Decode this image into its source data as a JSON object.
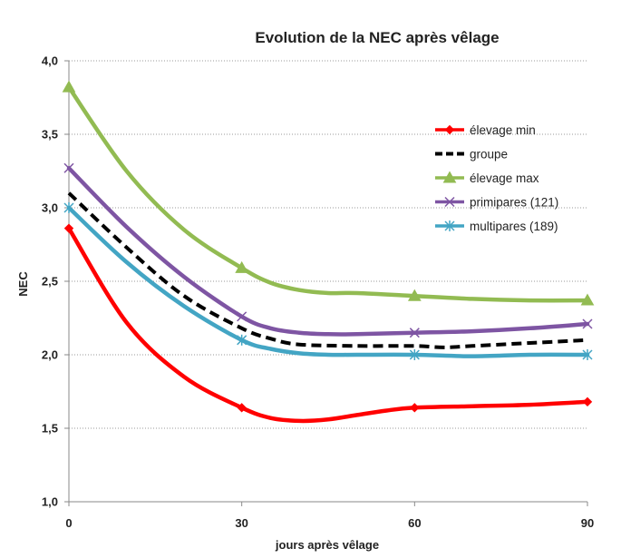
{
  "chart_data": {
    "type": "line",
    "title": "Evolution de la NEC après vêlage",
    "xlabel": "jours après vêlage",
    "ylabel": "NEC",
    "x_ticks": [
      "0",
      "30",
      "60",
      "90"
    ],
    "y_ticks": [
      "1,0",
      "1,5",
      "2,0",
      "2,5",
      "3,0",
      "3,5",
      "4,0"
    ],
    "xlim": [
      0,
      90
    ],
    "ylim": [
      1.0,
      4.0
    ],
    "grid": "horizontal dotted",
    "legend_position": "right",
    "series": [
      {
        "name": "élevage min",
        "color": "#ff0000",
        "marker": "diamond",
        "dashed": false,
        "x": [
          0,
          30,
          60,
          90
        ],
        "y": [
          2.86,
          1.64,
          1.64,
          1.68
        ],
        "curve": [
          [
            0,
            2.86
          ],
          [
            10,
            2.22
          ],
          [
            20,
            1.85
          ],
          [
            30,
            1.64
          ],
          [
            35,
            1.57
          ],
          [
            40,
            1.55
          ],
          [
            45,
            1.56
          ],
          [
            50,
            1.59
          ],
          [
            55,
            1.62
          ],
          [
            60,
            1.64
          ],
          [
            70,
            1.65
          ],
          [
            80,
            1.66
          ],
          [
            90,
            1.68
          ]
        ]
      },
      {
        "name": "groupe",
        "color": "#000000",
        "marker": "none",
        "dashed": true,
        "x": [
          0,
          30,
          60,
          90
        ],
        "y": [
          3.1,
          2.18,
          2.06,
          2.1
        ],
        "curve": [
          [
            0,
            3.1
          ],
          [
            10,
            2.73
          ],
          [
            20,
            2.4
          ],
          [
            30,
            2.18
          ],
          [
            35,
            2.11
          ],
          [
            40,
            2.07
          ],
          [
            50,
            2.06
          ],
          [
            60,
            2.06
          ],
          [
            65,
            2.05
          ],
          [
            70,
            2.06
          ],
          [
            80,
            2.08
          ],
          [
            90,
            2.1
          ]
        ]
      },
      {
        "name": "élevage max",
        "color": "#92bb52",
        "marker": "triangle",
        "dashed": false,
        "x": [
          0,
          30,
          60,
          90
        ],
        "y": [
          3.82,
          2.59,
          2.4,
          2.37
        ],
        "curve": [
          [
            0,
            3.82
          ],
          [
            10,
            3.25
          ],
          [
            20,
            2.85
          ],
          [
            30,
            2.59
          ],
          [
            35,
            2.49
          ],
          [
            40,
            2.44
          ],
          [
            45,
            2.42
          ],
          [
            50,
            2.42
          ],
          [
            60,
            2.4
          ],
          [
            70,
            2.38
          ],
          [
            80,
            2.37
          ],
          [
            90,
            2.37
          ]
        ]
      },
      {
        "name": "primipares (121)",
        "color": "#7e55a3",
        "marker": "x",
        "dashed": false,
        "x": [
          0,
          30,
          60,
          90
        ],
        "y": [
          3.27,
          2.26,
          2.15,
          2.21
        ],
        "curve": [
          [
            0,
            3.27
          ],
          [
            10,
            2.87
          ],
          [
            20,
            2.53
          ],
          [
            30,
            2.26
          ],
          [
            35,
            2.18
          ],
          [
            40,
            2.15
          ],
          [
            45,
            2.14
          ],
          [
            50,
            2.14
          ],
          [
            60,
            2.15
          ],
          [
            70,
            2.16
          ],
          [
            80,
            2.18
          ],
          [
            90,
            2.21
          ]
        ]
      },
      {
        "name": "multipares (189)",
        "color": "#43a5c4",
        "marker": "asterisk",
        "dashed": false,
        "x": [
          0,
          30,
          60,
          90
        ],
        "y": [
          3.0,
          2.1,
          2.0,
          2.0
        ],
        "curve": [
          [
            0,
            3.0
          ],
          [
            10,
            2.63
          ],
          [
            20,
            2.33
          ],
          [
            30,
            2.1
          ],
          [
            35,
            2.04
          ],
          [
            40,
            2.01
          ],
          [
            45,
            2.0
          ],
          [
            50,
            2.0
          ],
          [
            60,
            2.0
          ],
          [
            70,
            1.99
          ],
          [
            80,
            2.0
          ],
          [
            90,
            2.0
          ]
        ]
      }
    ]
  }
}
